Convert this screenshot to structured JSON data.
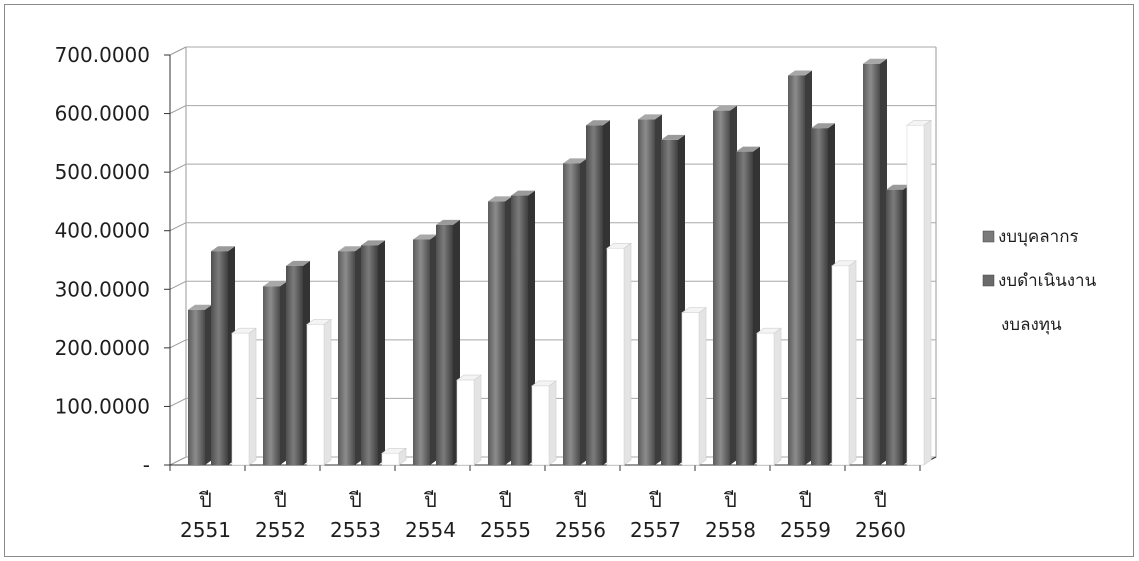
{
  "chart_data": {
    "type": "bar",
    "style": "3d-clustered-column",
    "categories": [
      "ปี 2551",
      "ปี 2552",
      "ปี 2553",
      "ปี 2554",
      "ปี 2555",
      "ปี 2556",
      "ปี 2557",
      "ปี 2558",
      "ปี 2559",
      "ปี 2560"
    ],
    "category_prefix": "ปี",
    "category_years": [
      "2551",
      "2552",
      "2553",
      "2554",
      "2555",
      "2556",
      "2557",
      "2558",
      "2559",
      "2560"
    ],
    "series": [
      {
        "name": "งบบุคลากร",
        "values": [
          265,
          305,
          365,
          385,
          450,
          515,
          590,
          605,
          665,
          685
        ],
        "color": "#7a7a7a"
      },
      {
        "name": "งบดำเนินงาน",
        "values": [
          365,
          340,
          375,
          410,
          460,
          580,
          555,
          535,
          575,
          470
        ],
        "color": "#6a6a6a"
      },
      {
        "name": "งบลงทุน",
        "values": [
          225,
          240,
          20,
          145,
          135,
          370,
          260,
          225,
          340,
          580
        ],
        "color": "#ffffff"
      }
    ],
    "yticks": [
      "-",
      "100.0000",
      "200.0000",
      "300.0000",
      "400.0000",
      "500.0000",
      "600.0000",
      "700.0000"
    ],
    "ylim": [
      0,
      700
    ],
    "grid": true,
    "legend_position": "right",
    "title": "",
    "xlabel": "",
    "ylabel": ""
  }
}
